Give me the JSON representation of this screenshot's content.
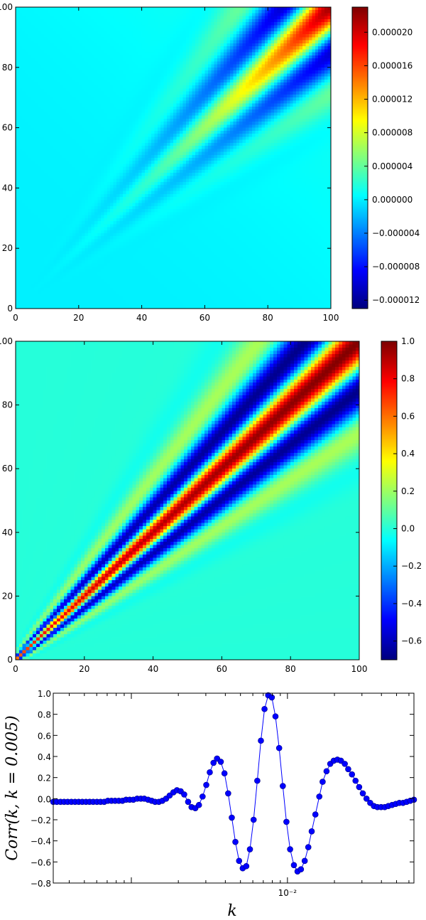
{
  "chart_data": [
    {
      "type": "heatmap",
      "title": "",
      "xlabel": "",
      "ylabel": "",
      "xlim": [
        0,
        100
      ],
      "ylim": [
        0,
        100
      ],
      "x_ticks": [
        "0",
        "20",
        "40",
        "60",
        "80",
        "100"
      ],
      "y_ticks": [
        "0",
        "20",
        "40",
        "60",
        "80",
        "100"
      ],
      "colormap": "jet",
      "colorbar_range": [
        -1.3e-05,
        2.3e-05
      ],
      "colorbar_ticks": [
        {
          "value": 2e-05,
          "label": "0.000020"
        },
        {
          "value": 1.6e-05,
          "label": "0.000016"
        },
        {
          "value": 1.2e-05,
          "label": "0.000012"
        },
        {
          "value": 8e-06,
          "label": "0.000008"
        },
        {
          "value": 4e-06,
          "label": "0.000004"
        },
        {
          "value": 0.0,
          "label": "0.000000"
        },
        {
          "value": -4e-06,
          "label": "−0.000004"
        },
        {
          "value": -8e-06,
          "label": "−0.000008"
        },
        {
          "value": -1.2e-05,
          "label": "−0.000012"
        }
      ],
      "grid": false
    },
    {
      "type": "heatmap",
      "title": "",
      "xlabel": "",
      "ylabel": "",
      "xlim": [
        0,
        100
      ],
      "ylim": [
        0,
        100
      ],
      "x_ticks": [
        "0",
        "20",
        "40",
        "60",
        "80",
        "100"
      ],
      "y_ticks": [
        "0",
        "20",
        "40",
        "60",
        "80",
        "100"
      ],
      "colormap": "jet",
      "colorbar_range": [
        -0.7,
        1.0
      ],
      "colorbar_ticks": [
        {
          "value": 1.0,
          "label": "1.0"
        },
        {
          "value": 0.8,
          "label": "0.8"
        },
        {
          "value": 0.6,
          "label": "0.6"
        },
        {
          "value": 0.4,
          "label": "0.4"
        },
        {
          "value": 0.2,
          "label": "0.2"
        },
        {
          "value": 0.0,
          "label": "0.0"
        },
        {
          "value": -0.2,
          "label": "−0.2"
        },
        {
          "value": -0.4,
          "label": "−0.4"
        },
        {
          "value": -0.6,
          "label": "−0.6"
        }
      ],
      "grid": false
    },
    {
      "type": "line",
      "title": "",
      "xlabel": "k",
      "ylabel": "Corr(k, k = 0.005)",
      "x_scale": "log",
      "x_tick_label": "10⁻²",
      "ylim": [
        -0.8,
        1.0
      ],
      "y_ticks": [
        "1.0",
        "0.8",
        "0.6",
        "0.4",
        "0.2",
        "0.0",
        "−0.2",
        "−0.4",
        "−0.6",
        "−0.8"
      ],
      "marker": "circle",
      "line_color": "#0000ff",
      "grid": false,
      "series": [
        {
          "x": [
            0.000316,
            0.000333,
            0.000352,
            0.000371,
            0.000391,
            0.000413,
            0.000436,
            0.00046,
            0.000485,
            0.000512,
            0.00054,
            0.00057,
            0.000602,
            0.000635,
            0.00067,
            0.000707,
            0.000746,
            0.000787,
            0.000831,
            0.000877,
            0.000925,
            0.000976,
            0.00103,
            0.00109,
            0.00115,
            0.00121,
            0.00128,
            0.00135,
            0.00142,
            0.0015,
            0.00158,
            0.00167,
            0.00176,
            0.00186,
            0.00196,
            0.00207,
            0.00218,
            0.00231,
            0.00243,
            0.00257,
            0.00271,
            0.00286,
            0.00302,
            0.00318,
            0.00336,
            0.00354,
            0.00374,
            0.00395,
            0.00417,
            0.0044,
            0.00464,
            0.0049,
            0.00517,
            0.00545,
            0.00575,
            0.00607,
            0.00641,
            0.00676,
            0.00713,
            0.00753,
            0.00794,
            0.00838,
            0.00885,
            0.00934,
            0.00985,
            0.0104,
            0.011,
            0.0116,
            0.0122,
            0.0129,
            0.0136,
            0.0143,
            0.0151,
            0.016,
            0.0168,
            0.0178,
            0.0188,
            0.0198,
            0.0209,
            0.022,
            0.0233,
            0.0245,
            0.0259,
            0.0273,
            0.0288,
            0.0304,
            0.0321,
            0.0339,
            0.0358,
            0.0377,
            0.0398,
            0.042,
            0.0443,
            0.0468,
            0.0494,
            0.0521,
            0.055,
            0.058,
            0.0612,
            0.0646
          ],
          "y": [
            -0.03,
            -0.03,
            -0.03,
            -0.03,
            -0.03,
            -0.03,
            -0.03,
            -0.03,
            -0.03,
            -0.03,
            -0.03,
            -0.03,
            -0.03,
            -0.03,
            -0.03,
            -0.02,
            -0.02,
            -0.02,
            -0.02,
            -0.02,
            -0.01,
            -0.01,
            -0.01,
            0.0,
            0.0,
            0.0,
            -0.01,
            -0.02,
            -0.03,
            -0.03,
            -0.02,
            0.0,
            0.03,
            0.06,
            0.08,
            0.07,
            0.04,
            -0.03,
            -0.08,
            -0.09,
            -0.06,
            0.02,
            0.13,
            0.25,
            0.34,
            0.38,
            0.35,
            0.24,
            0.05,
            -0.18,
            -0.41,
            -0.59,
            -0.66,
            -0.64,
            -0.48,
            -0.2,
            0.17,
            0.55,
            0.85,
            0.98,
            0.96,
            0.78,
            0.48,
            0.12,
            -0.22,
            -0.48,
            -0.63,
            -0.69,
            -0.67,
            -0.59,
            -0.46,
            -0.31,
            -0.15,
            0.02,
            0.16,
            0.26,
            0.33,
            0.36,
            0.37,
            0.36,
            0.33,
            0.28,
            0.23,
            0.17,
            0.11,
            0.05,
            0.0,
            -0.04,
            -0.07,
            -0.08,
            -0.08,
            -0.08,
            -0.07,
            -0.06,
            -0.05,
            -0.04,
            -0.04,
            -0.03,
            -0.02,
            -0.01
          ]
        }
      ]
    }
  ]
}
